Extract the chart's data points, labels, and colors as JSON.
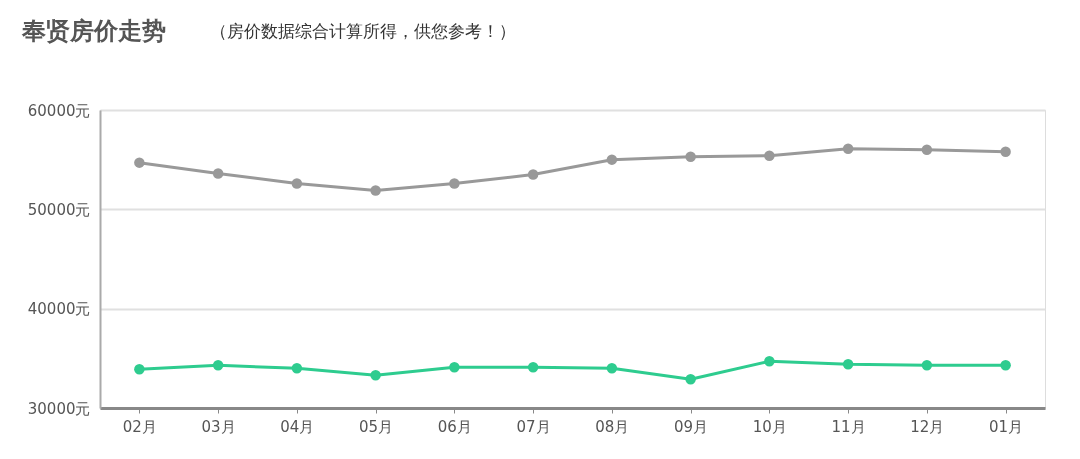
{
  "chart_data": {
    "type": "line",
    "title": "奉贤房价走势",
    "subtitle": "（房价数据综合计算所得，供您参考！）",
    "categories": [
      "02月",
      "03月",
      "04月",
      "05月",
      "06月",
      "07月",
      "08月",
      "09月",
      "10月",
      "11月",
      "12月",
      "01月"
    ],
    "series": [
      {
        "color": "#999999",
        "values": [
          54700,
          53600,
          52600,
          51900,
          52600,
          53500,
          55000,
          55300,
          55400,
          56100,
          56000,
          55800
        ]
      },
      {
        "color": "#2ecc8f",
        "values": [
          33900,
          34300,
          34000,
          33300,
          34100,
          34100,
          34000,
          32900,
          34700,
          34400,
          34300,
          34300
        ]
      }
    ],
    "ylim": [
      30000,
      60000
    ],
    "yticks": [
      {
        "value": 30000,
        "label": "30000元"
      },
      {
        "value": 40000,
        "label": "40000元"
      },
      {
        "value": 50000,
        "label": "50000元"
      },
      {
        "value": 60000,
        "label": "60000元"
      }
    ],
    "grid": "y",
    "legend": false,
    "marker": "circle",
    "line_style": "solid"
  }
}
